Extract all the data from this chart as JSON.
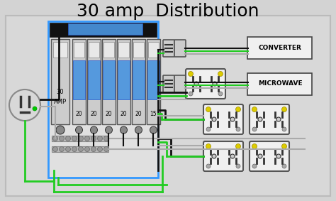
{
  "title": "30 amp  Distribution",
  "bg_color": "#d3d3d3",
  "title_fontsize": 18,
  "wire_black": "#111111",
  "wire_green": "#22cc22",
  "wire_gray": "#aaaaaa",
  "panel_border_color": "#3399ff",
  "breaker_labels": [
    "20",
    "20",
    "20",
    "20",
    "20",
    "15"
  ],
  "main_label_1": "30",
  "main_label_2": "AMP",
  "converter_label": "CONVERTER",
  "microwave_label": "MICROWAVE"
}
